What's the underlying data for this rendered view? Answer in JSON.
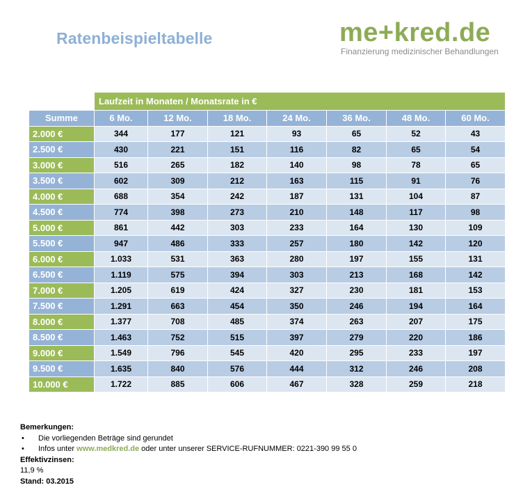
{
  "title": "Ratenbeispieltabelle",
  "logo": {
    "word_left": "me",
    "word_plus": "+",
    "word_right": "kred.de",
    "tagline": "Finanzierung medizinischer Behandlungen"
  },
  "table": {
    "span_header": "Laufzeit in Monaten / Monatsrate in €",
    "columns": [
      "Summe",
      "6 Mo.",
      "12 Mo.",
      "18 Mo.",
      "24 Mo.",
      "36 Mo.",
      "48 Mo.",
      "60 Mo."
    ],
    "rows": [
      [
        "2.000 €",
        "344",
        "177",
        "121",
        "93",
        "65",
        "52",
        "43"
      ],
      [
        "2.500 €",
        "430",
        "221",
        "151",
        "116",
        "82",
        "65",
        "54"
      ],
      [
        "3.000 €",
        "516",
        "265",
        "182",
        "140",
        "98",
        "78",
        "65"
      ],
      [
        "3.500 €",
        "602",
        "309",
        "212",
        "163",
        "115",
        "91",
        "76"
      ],
      [
        "4.000 €",
        "688",
        "354",
        "242",
        "187",
        "131",
        "104",
        "87"
      ],
      [
        "4.500 €",
        "774",
        "398",
        "273",
        "210",
        "148",
        "117",
        "98"
      ],
      [
        "5.000 €",
        "861",
        "442",
        "303",
        "233",
        "164",
        "130",
        "109"
      ],
      [
        "5.500 €",
        "947",
        "486",
        "333",
        "257",
        "180",
        "142",
        "120"
      ],
      [
        "6.000 €",
        "1.033",
        "531",
        "363",
        "280",
        "197",
        "155",
        "131"
      ],
      [
        "6.500 €",
        "1.119",
        "575",
        "394",
        "303",
        "213",
        "168",
        "142"
      ],
      [
        "7.000 €",
        "1.205",
        "619",
        "424",
        "327",
        "230",
        "181",
        "153"
      ],
      [
        "7.500 €",
        "1.291",
        "663",
        "454",
        "350",
        "246",
        "194",
        "164"
      ],
      [
        "8.000 €",
        "1.377",
        "708",
        "485",
        "374",
        "263",
        "207",
        "175"
      ],
      [
        "8.500 €",
        "1.463",
        "752",
        "515",
        "397",
        "279",
        "220",
        "186"
      ],
      [
        "9.000 €",
        "1.549",
        "796",
        "545",
        "420",
        "295",
        "233",
        "197"
      ],
      [
        "9.500 €",
        "1.635",
        "840",
        "576",
        "444",
        "312",
        "246",
        "208"
      ],
      [
        "10.000 €",
        "1.722",
        "885",
        "606",
        "467",
        "328",
        "259",
        "218"
      ]
    ]
  },
  "notes": {
    "heading": "Bemerkungen:",
    "bullet1": "Die vorliegenden Beträge sind gerundet",
    "bullet2_prefix": "Infos unter ",
    "bullet2_link": "www.medkred.de",
    "bullet2_suffix": " oder unter unserer SERVICE-RUFNUMMER: 0221-390 99 55 0",
    "bullet_symbol": "•",
    "rate_label": "Effektivzinsen:",
    "rate_value": "11,9 %",
    "status": "Stand: 03.2015"
  },
  "colors": {
    "green": "#9bbb59",
    "blue_header": "#95b3d7",
    "row_light": "#dce6f1",
    "row_dark": "#b8cce4",
    "title_blue": "#8eb0d6"
  }
}
